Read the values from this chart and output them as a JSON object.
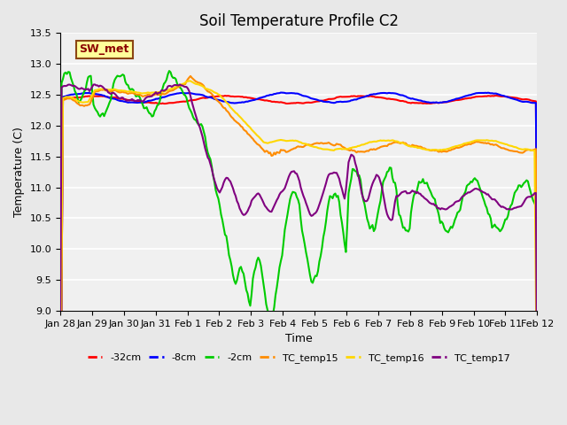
{
  "title": "Soil Temperature Profile C2",
  "xlabel": "Time",
  "ylabel": "Temperature (C)",
  "ylim": [
    9.0,
    13.5
  ],
  "yticks": [
    9.0,
    9.5,
    10.0,
    10.5,
    11.0,
    11.5,
    12.0,
    12.5,
    13.0,
    13.5
  ],
  "x_labels": [
    "Jan 28",
    "Jan 29",
    "Jan 30",
    "Jan 31",
    "Feb 1",
    "Feb 2",
    "Feb 3",
    "Feb 4",
    "Feb 5",
    "Feb 6",
    "Feb 7",
    "Feb 8",
    "Feb 9",
    "Feb 10",
    "Feb 11",
    "Feb 12"
  ],
  "annotation_text": "SW_met",
  "annotation_color": "#8B0000",
  "annotation_bg": "#FFFF99",
  "annotation_border": "#8B4513",
  "line_colors": {
    "neg32cm": "#FF0000",
    "neg8cm": "#0000FF",
    "neg2cm": "#00CC00",
    "TC_temp15": "#FF8C00",
    "TC_temp16": "#FFD700",
    "TC_temp17": "#800080"
  },
  "line_widths": {
    "neg32cm": 1.5,
    "neg8cm": 1.5,
    "neg2cm": 1.5,
    "TC_temp15": 1.5,
    "TC_temp16": 1.5,
    "TC_temp17": 1.5
  },
  "legend_labels": [
    "-32cm",
    "-8cm",
    "-2cm",
    "TC_temp15",
    "TC_temp16",
    "TC_temp17"
  ],
  "bg_color": "#E8E8E8",
  "plot_bg_color": "#F0F0F0",
  "grid_color": "#FFFFFF",
  "num_points": 360
}
